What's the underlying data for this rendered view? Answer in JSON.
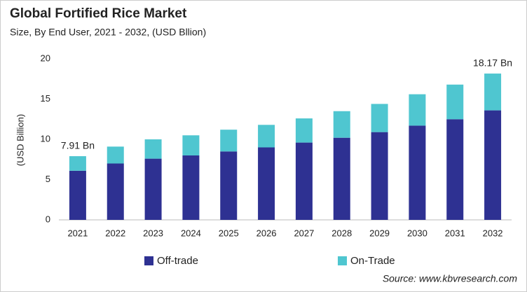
{
  "chart_data": {
    "type": "stacked-bar",
    "title": "Global Fortified Rice Market",
    "subtitle": "Size, By End User, 2021 - 2032, (USD Bllion)",
    "y_label": "(USD Billion)",
    "source": "Source: www.kbvresearch.com",
    "categories": [
      "2021",
      "2022",
      "2023",
      "2024",
      "2025",
      "2026",
      "2027",
      "2028",
      "2029",
      "2030",
      "2031",
      "2032"
    ],
    "series": [
      {
        "name": "Off-trade",
        "color": "#2e3192",
        "values": [
          6.1,
          7.0,
          7.6,
          8.0,
          8.5,
          9.0,
          9.6,
          10.2,
          10.9,
          11.7,
          12.5,
          13.6
        ]
      },
      {
        "name": "On-Trade",
        "color": "#4fc6d0",
        "values": [
          1.81,
          2.1,
          2.4,
          2.5,
          2.7,
          2.8,
          3.0,
          3.3,
          3.5,
          3.9,
          4.3,
          4.57
        ]
      }
    ],
    "annotations": [
      {
        "label": "7.91 Bn",
        "value": 7.91,
        "x": "2021"
      },
      {
        "label": "18.17 Bn",
        "value": 18.17,
        "x": "2032"
      }
    ],
    "ylim": [
      0,
      20
    ],
    "yticks": [
      0,
      5,
      10,
      15,
      20
    ],
    "grid": false
  }
}
